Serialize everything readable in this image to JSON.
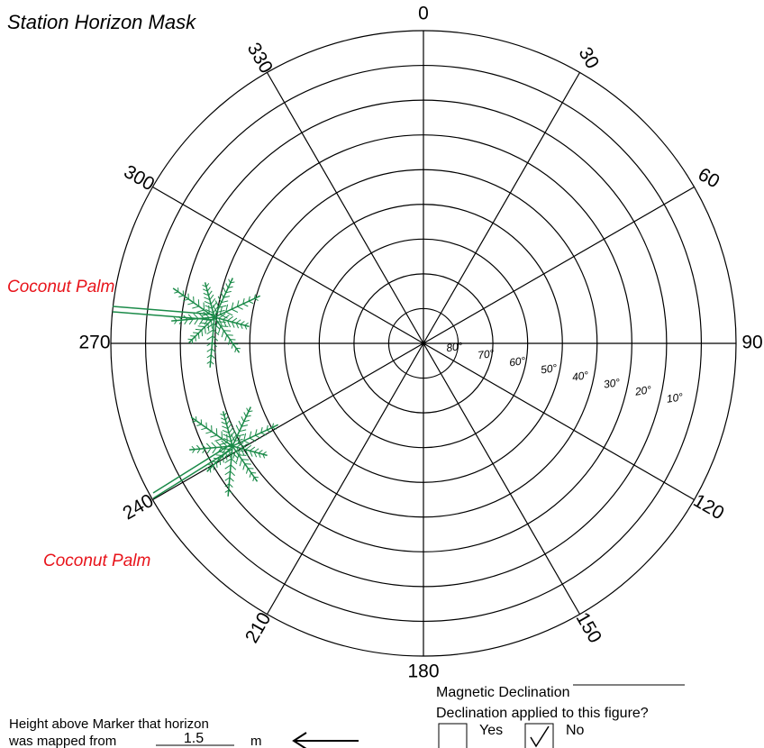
{
  "title": "Station Horizon Mask",
  "azimuth_labels": [
    "0",
    "30",
    "60",
    "90",
    "120",
    "150",
    "180",
    "210",
    "240",
    "270",
    "300",
    "330"
  ],
  "elevation_labels": [
    "80°",
    "70°",
    "60°",
    "50°",
    "40°",
    "30°",
    "20°",
    "10°"
  ],
  "annotations": [
    "Coconut Palm",
    "Coconut Palm"
  ],
  "declination": {
    "label": "Magnetic Declination",
    "question": "Declination applied to this figure?",
    "options": [
      {
        "label": "Yes",
        "checked": false
      },
      {
        "label": "No",
        "checked": true
      }
    ]
  },
  "height": {
    "line1": "Height above Marker that horizon",
    "line2": "was mapped from",
    "value": "1.5",
    "unit": "m"
  }
}
